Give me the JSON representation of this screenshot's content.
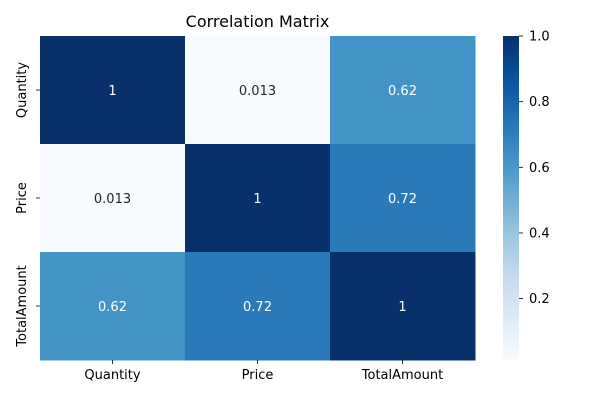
{
  "chart_data": {
    "type": "heatmap",
    "title": "Correlation Matrix",
    "x_categories": [
      "Quantity",
      "Price",
      "TotalAmount"
    ],
    "y_categories": [
      "Quantity",
      "Price",
      "TotalAmount"
    ],
    "values": [
      [
        1,
        0.013,
        0.62
      ],
      [
        0.013,
        1,
        0.72
      ],
      [
        0.62,
        0.72,
        1
      ]
    ],
    "annotations": [
      [
        "1",
        "0.013",
        "0.62"
      ],
      [
        "0.013",
        "1",
        "0.72"
      ],
      [
        "0.62",
        "0.72",
        "1"
      ]
    ],
    "colormap": "Blues",
    "colorbar": {
      "range": [
        0.013,
        1.0
      ],
      "ticks": [
        0.2,
        0.4,
        0.6,
        0.8,
        1.0
      ],
      "tick_labels": [
        "0.2",
        "0.4",
        "0.6",
        "0.8",
        "1.0"
      ]
    }
  }
}
